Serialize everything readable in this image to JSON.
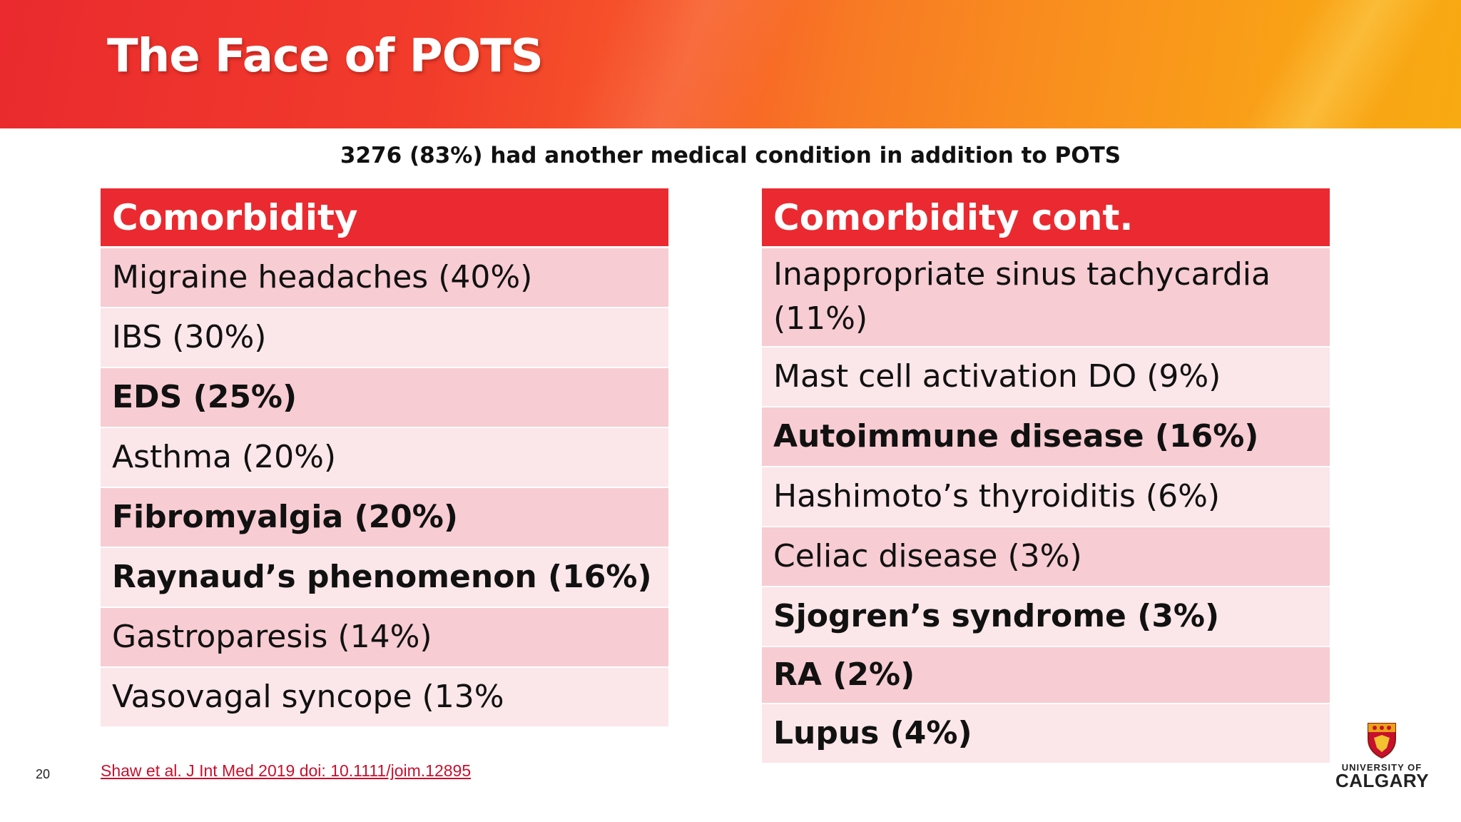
{
  "slide": {
    "title": "The Face of POTS",
    "subtitle": "3276 (83%) had another medical condition in addition to POTS",
    "page_number": "20",
    "citation": "Shaw et al. J Int Med 2019 doi: 10.1111/joim.12895"
  },
  "left_table": {
    "header": "Comorbidity",
    "rows": [
      {
        "text": "Migraine headaches (40%)",
        "bold": false
      },
      {
        "text": "IBS (30%)",
        "bold": false
      },
      {
        "text": "EDS (25%)",
        "bold": true
      },
      {
        "text": "Asthma (20%)",
        "bold": false
      },
      {
        "text": "Fibromyalgia (20%)",
        "bold": true
      },
      {
        "text": "Raynaud’s phenomenon (16%)",
        "bold": true
      },
      {
        "text": "Gastroparesis (14%)",
        "bold": false
      },
      {
        "text": "Vasovagal syncope (13%",
        "bold": false
      }
    ]
  },
  "right_table": {
    "header": "Comorbidity cont.",
    "rows": [
      {
        "text": "Inappropriate sinus tachycardia (11%)",
        "bold": false
      },
      {
        "text": "Mast cell activation DO (9%)",
        "bold": false
      },
      {
        "text": "Autoimmune disease (16%)",
        "bold": true
      },
      {
        "text": "Hashimoto’s thyroiditis (6%)",
        "bold": false
      },
      {
        "text": "Celiac disease (3%)",
        "bold": false
      },
      {
        "text": "Sjogren’s syndrome (3%)",
        "bold": true
      },
      {
        "text": "RA (2%)",
        "bold": true
      },
      {
        "text": "Lupus (4%)",
        "bold": true
      }
    ]
  },
  "logo": {
    "line1": "UNIVERSITY OF",
    "line2": "CALGARY",
    "icon": "university-crest-icon"
  },
  "colors": {
    "header_red": "#ea2a30",
    "row_odd": "#f7ccd2",
    "row_even": "#fbe6e9",
    "link_red": "#c8102e"
  }
}
